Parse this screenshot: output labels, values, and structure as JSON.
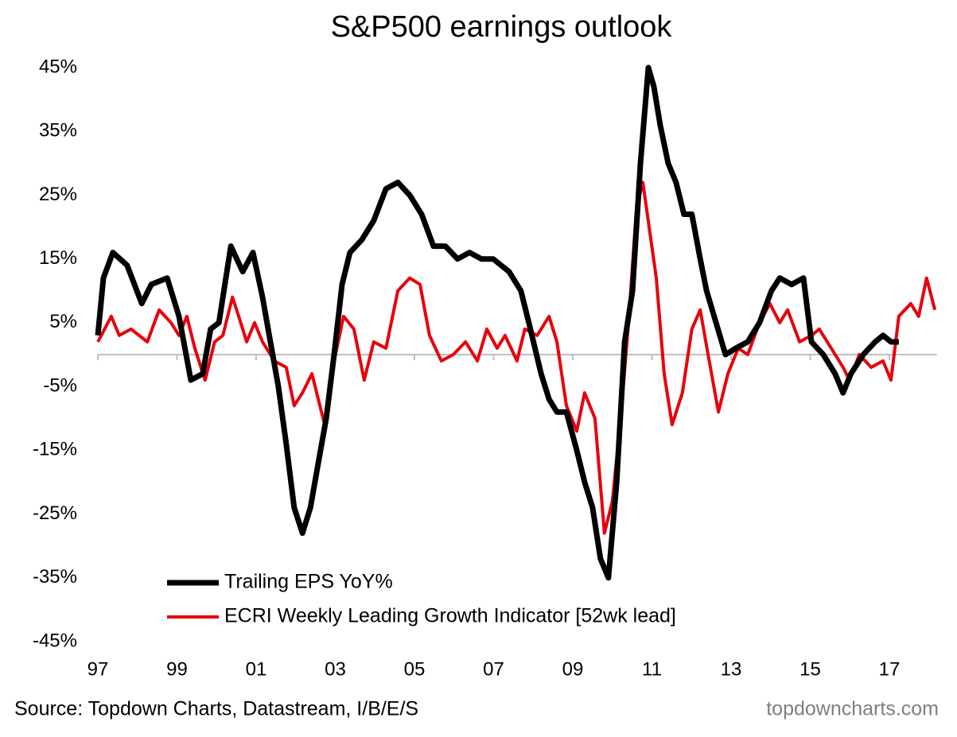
{
  "chart_data": {
    "type": "line",
    "title": "S&P500 earnings outlook",
    "source": "Source: Topdown Charts, Datastream, I/B/E/S",
    "watermark": "topdowncharts.com",
    "xlim": [
      1997,
      2018.2
    ],
    "xticks": [
      {
        "value": 1997,
        "label": "97"
      },
      {
        "value": 1999,
        "label": "99"
      },
      {
        "value": 2001,
        "label": "01"
      },
      {
        "value": 2003,
        "label": "03"
      },
      {
        "value": 2005,
        "label": "05"
      },
      {
        "value": 2007,
        "label": "07"
      },
      {
        "value": 2009,
        "label": "09"
      },
      {
        "value": 2011,
        "label": "11"
      },
      {
        "value": 2013,
        "label": "13"
      },
      {
        "value": 2015,
        "label": "15"
      },
      {
        "value": 2017,
        "label": "17"
      }
    ],
    "ylim": [
      -45,
      45
    ],
    "yticks": [
      {
        "value": 45,
        "label": "45%"
      },
      {
        "value": 35,
        "label": "35%"
      },
      {
        "value": 25,
        "label": "25%"
      },
      {
        "value": 15,
        "label": "15%"
      },
      {
        "value": 5,
        "label": "5%"
      },
      {
        "value": -5,
        "label": "-5%"
      },
      {
        "value": -15,
        "label": "-15%"
      },
      {
        "value": -25,
        "label": "-25%"
      },
      {
        "value": -35,
        "label": "-35%"
      },
      {
        "value": -45,
        "label": "-45%"
      }
    ],
    "series": [
      {
        "name": "Trailing EPS YoY%",
        "color": "#000000",
        "x": [
          1997.0,
          1997.14,
          1997.38,
          1997.74,
          1998.11,
          1998.35,
          1998.75,
          1999.05,
          1999.35,
          1999.65,
          1999.85,
          2000.06,
          2000.36,
          2000.66,
          2000.92,
          2001.16,
          2001.36,
          2001.56,
          2001.76,
          2001.96,
          2002.17,
          2002.37,
          2002.57,
          2002.77,
          2002.97,
          2003.17,
          2003.37,
          2003.67,
          2003.97,
          2004.28,
          2004.58,
          2004.88,
          2005.18,
          2005.48,
          2005.78,
          2006.09,
          2006.39,
          2006.69,
          2006.99,
          2007.39,
          2007.69,
          2007.89,
          2008.2,
          2008.4,
          2008.6,
          2008.84,
          2009.1,
          2009.3,
          2009.5,
          2009.7,
          2009.9,
          2010.11,
          2010.31,
          2010.51,
          2010.71,
          2010.91,
          2011.05,
          2011.21,
          2011.41,
          2011.61,
          2011.81,
          2012.01,
          2012.22,
          2012.38,
          2012.62,
          2012.86,
          2013.12,
          2013.42,
          2013.72,
          2014.02,
          2014.23,
          2014.53,
          2014.83,
          2015.03,
          2015.33,
          2015.63,
          2015.83,
          2016.03,
          2016.34,
          2016.64,
          2016.84,
          2017.04,
          2017.24
        ],
        "values": [
          3,
          12,
          16,
          14,
          8,
          11,
          12,
          6,
          -4,
          -3,
          4,
          5,
          17,
          13,
          16,
          9,
          2,
          -5,
          -14,
          -24,
          -28,
          -24,
          -17,
          -10,
          0,
          11,
          16,
          18,
          21,
          26,
          27,
          25,
          22,
          17,
          17,
          15,
          16,
          15,
          15,
          13,
          10,
          5,
          -3,
          -7,
          -9,
          -9,
          -15,
          -20,
          -24,
          -32,
          -35,
          -20,
          2,
          10,
          30,
          45,
          42,
          36,
          30,
          27,
          22,
          22,
          15,
          10,
          5,
          0,
          1,
          2,
          5,
          10,
          12,
          11,
          12,
          2,
          0,
          -3,
          -6,
          -3,
          0,
          2,
          3,
          2,
          2
        ]
      },
      {
        "name": "ECRI Weekly Leading Growth Indicator [52wk lead]",
        "color": "#e8000b",
        "x": [
          1997.0,
          1997.34,
          1997.54,
          1997.84,
          1998.25,
          1998.55,
          1998.85,
          1999.05,
          1999.25,
          1999.45,
          1999.71,
          1999.95,
          2000.16,
          2000.4,
          2000.56,
          2000.76,
          2000.96,
          2001.16,
          2001.46,
          2001.76,
          2001.96,
          2002.17,
          2002.41,
          2002.73,
          2002.97,
          2003.21,
          2003.47,
          2003.73,
          2003.97,
          2004.28,
          2004.58,
          2004.88,
          2005.14,
          2005.38,
          2005.68,
          2005.98,
          2006.29,
          2006.59,
          2006.83,
          2007.09,
          2007.29,
          2007.59,
          2007.79,
          2008.1,
          2008.4,
          2008.6,
          2008.84,
          2009.1,
          2009.3,
          2009.56,
          2009.8,
          2010.0,
          2010.21,
          2010.41,
          2010.61,
          2010.77,
          2010.93,
          2011.11,
          2011.31,
          2011.51,
          2011.77,
          2012.01,
          2012.22,
          2012.42,
          2012.68,
          2012.92,
          2013.18,
          2013.42,
          2013.72,
          2013.98,
          2014.23,
          2014.43,
          2014.73,
          2015.03,
          2015.23,
          2015.53,
          2015.83,
          2015.99,
          2016.24,
          2016.54,
          2016.84,
          2017.04,
          2017.24,
          2017.54,
          2017.74,
          2017.94,
          2018.15
        ],
        "values": [
          2,
          6,
          3,
          4,
          2,
          7,
          5,
          3,
          6,
          1,
          -4,
          2,
          3,
          9,
          6,
          2,
          5,
          2,
          -1,
          -2,
          -8,
          -6,
          -3,
          -11,
          -1,
          6,
          4,
          -4,
          2,
          1,
          10,
          12,
          11,
          3,
          -1,
          0,
          2,
          -1,
          4,
          1,
          3,
          -1,
          4,
          3,
          6,
          2,
          -8,
          -12,
          -6,
          -10,
          -28,
          -23,
          -10,
          5,
          23,
          27,
          20,
          12,
          -3,
          -11,
          -6,
          4,
          7,
          0,
          -9,
          -3,
          1,
          0,
          5,
          8,
          5,
          7,
          2,
          3,
          4,
          1,
          -2,
          -4,
          0,
          -2,
          -1,
          -4,
          6,
          8,
          6,
          12,
          7
        ]
      }
    ]
  }
}
